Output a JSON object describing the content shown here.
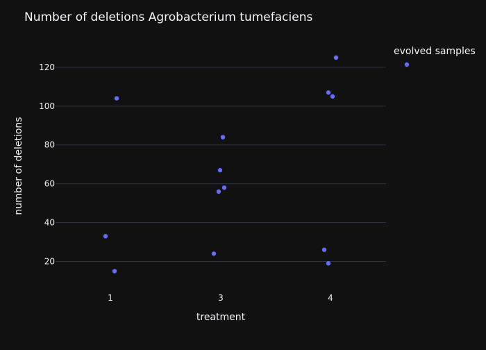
{
  "chart_data": {
    "type": "scatter",
    "title": "Number of deletions Agrobacterium tumefaciens",
    "xlabel": "treatment",
    "ylabel": "number of deletions",
    "categories": [
      "1",
      "3",
      "4"
    ],
    "ylim": [
      8,
      135
    ],
    "y_ticks": [
      20,
      40,
      60,
      80,
      100,
      120
    ],
    "grid": true,
    "legend_position": "top-right",
    "series": [
      {
        "name": "evolved samples",
        "color": "#636efa",
        "points": [
          {
            "x": "1",
            "y": 104
          },
          {
            "x": "1",
            "y": 33
          },
          {
            "x": "1",
            "y": 15
          },
          {
            "x": "3",
            "y": 84
          },
          {
            "x": "3",
            "y": 67
          },
          {
            "x": "3",
            "y": 58
          },
          {
            "x": "3",
            "y": 56
          },
          {
            "x": "3",
            "y": 24
          },
          {
            "x": "4",
            "y": 125
          },
          {
            "x": "4",
            "y": 107
          },
          {
            "x": "4",
            "y": 105
          },
          {
            "x": "4",
            "y": 26
          },
          {
            "x": "4",
            "y": 19
          }
        ]
      }
    ]
  },
  "colors": {
    "background": "#111111",
    "grid": "#283442",
    "text": "#f2f5fa",
    "marker": "#636efa"
  }
}
